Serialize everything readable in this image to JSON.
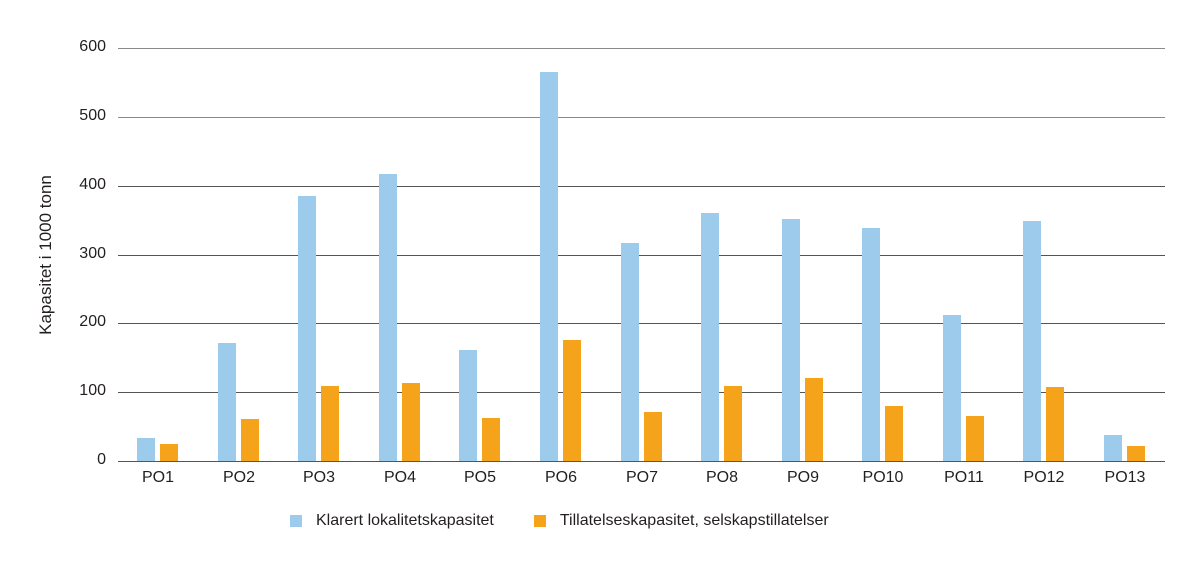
{
  "chart_data": {
    "type": "bar",
    "title": "",
    "xlabel": "",
    "ylabel": "Kapasitet i 1000 tonn",
    "ylim": [
      0,
      600
    ],
    "yticks": [
      0,
      100,
      200,
      300,
      400,
      500,
      600
    ],
    "grid": true,
    "legend_position": "bottom",
    "categories": [
      "PO1",
      "PO2",
      "PO3",
      "PO4",
      "PO5",
      "PO6",
      "PO7",
      "PO8",
      "PO9",
      "PO10",
      "PO11",
      "PO12",
      "PO13"
    ],
    "series": [
      {
        "name": "Klarert lokalitetskapasitet",
        "color": "#9dcbeb",
        "values": [
          33,
          172,
          385,
          417,
          161,
          565,
          316,
          361,
          351,
          339,
          212,
          349,
          38
        ]
      },
      {
        "name": "Tillatelseskapasitet, selskapstillatelser",
        "color": "#f4a31a",
        "values": [
          25,
          61,
          109,
          113,
          62,
          176,
          71,
          109,
          120,
          80,
          65,
          107,
          22
        ]
      }
    ]
  }
}
